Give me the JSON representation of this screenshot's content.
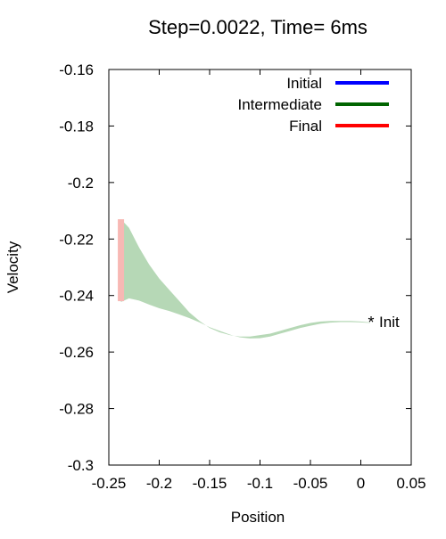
{
  "chart_data": {
    "type": "area",
    "title": "Step=0.0022, Time= 6ms",
    "xlabel": "Position",
    "ylabel": "Velocity",
    "xlim": [
      -0.25,
      0.05
    ],
    "ylim": [
      -0.3,
      -0.16
    ],
    "xticks": [
      -0.25,
      -0.2,
      -0.15,
      -0.1,
      -0.05,
      0,
      0.05
    ],
    "xtick_labels": [
      "-0.25",
      "-0.2",
      "-0.15",
      "-0.1",
      "-0.05",
      "0",
      "0.05"
    ],
    "yticks": [
      -0.3,
      -0.28,
      -0.26,
      -0.24,
      -0.22,
      -0.2,
      -0.18,
      -0.16
    ],
    "ytick_labels": [
      "-0.3",
      "-0.28",
      "-0.26",
      "-0.24",
      "-0.22",
      "-0.2",
      "-0.18",
      "-0.16"
    ],
    "grid": false,
    "legend_position": "top-right",
    "legend": [
      {
        "label": "Initial",
        "color": "#0000ff"
      },
      {
        "label": "Intermediate",
        "color": "#006400"
      },
      {
        "label": "Final",
        "color": "#ff0000"
      }
    ],
    "series": [
      {
        "name": "Intermediate",
        "color": "#b6d8b6",
        "upper": [
          {
            "x": -0.238,
            "y": -0.213
          },
          {
            "x": -0.23,
            "y": -0.216
          },
          {
            "x": -0.22,
            "y": -0.223
          },
          {
            "x": -0.21,
            "y": -0.229
          },
          {
            "x": -0.2,
            "y": -0.234
          },
          {
            "x": -0.19,
            "y": -0.238
          },
          {
            "x": -0.18,
            "y": -0.242
          },
          {
            "x": -0.17,
            "y": -0.246
          },
          {
            "x": -0.16,
            "y": -0.249
          },
          {
            "x": -0.15,
            "y": -0.2515
          },
          {
            "x": -0.14,
            "y": -0.253
          },
          {
            "x": -0.13,
            "y": -0.254
          },
          {
            "x": -0.12,
            "y": -0.2545
          },
          {
            "x": -0.11,
            "y": -0.2545
          },
          {
            "x": -0.1,
            "y": -0.254
          },
          {
            "x": -0.09,
            "y": -0.2535
          },
          {
            "x": -0.08,
            "y": -0.2525
          },
          {
            "x": -0.07,
            "y": -0.2515
          },
          {
            "x": -0.06,
            "y": -0.2505
          },
          {
            "x": -0.05,
            "y": -0.2497
          },
          {
            "x": -0.04,
            "y": -0.2492
          },
          {
            "x": -0.03,
            "y": -0.249
          },
          {
            "x": -0.02,
            "y": -0.249
          },
          {
            "x": -0.01,
            "y": -0.249
          },
          {
            "x": 0.0,
            "y": -0.2492
          },
          {
            "x": 0.009,
            "y": -0.2495
          }
        ],
        "lower": [
          {
            "x": 0.009,
            "y": -0.2497
          },
          {
            "x": 0.0,
            "y": -0.2495
          },
          {
            "x": -0.01,
            "y": -0.2494
          },
          {
            "x": -0.02,
            "y": -0.2494
          },
          {
            "x": -0.03,
            "y": -0.2496
          },
          {
            "x": -0.04,
            "y": -0.25
          },
          {
            "x": -0.05,
            "y": -0.2507
          },
          {
            "x": -0.06,
            "y": -0.2515
          },
          {
            "x": -0.07,
            "y": -0.2525
          },
          {
            "x": -0.08,
            "y": -0.2535
          },
          {
            "x": -0.09,
            "y": -0.2545
          },
          {
            "x": -0.1,
            "y": -0.2551
          },
          {
            "x": -0.11,
            "y": -0.2552
          },
          {
            "x": -0.12,
            "y": -0.2548
          },
          {
            "x": -0.13,
            "y": -0.2538
          },
          {
            "x": -0.14,
            "y": -0.2525
          },
          {
            "x": -0.15,
            "y": -0.2512
          },
          {
            "x": -0.16,
            "y": -0.2495
          },
          {
            "x": -0.17,
            "y": -0.248
          },
          {
            "x": -0.18,
            "y": -0.2467
          },
          {
            "x": -0.19,
            "y": -0.2455
          },
          {
            "x": -0.2,
            "y": -0.2445
          },
          {
            "x": -0.21,
            "y": -0.2432
          },
          {
            "x": -0.22,
            "y": -0.2418
          },
          {
            "x": -0.23,
            "y": -0.241
          },
          {
            "x": -0.238,
            "y": -0.2423
          }
        ]
      },
      {
        "name": "Final",
        "color": "#f7b8b4",
        "x": -0.238,
        "y_min": -0.242,
        "y_max": -0.213
      }
    ],
    "annotations": [
      {
        "label": "Init",
        "x": 0.0102,
        "y": -0.2495,
        "marker": "*",
        "color": "#0000ff"
      }
    ]
  }
}
